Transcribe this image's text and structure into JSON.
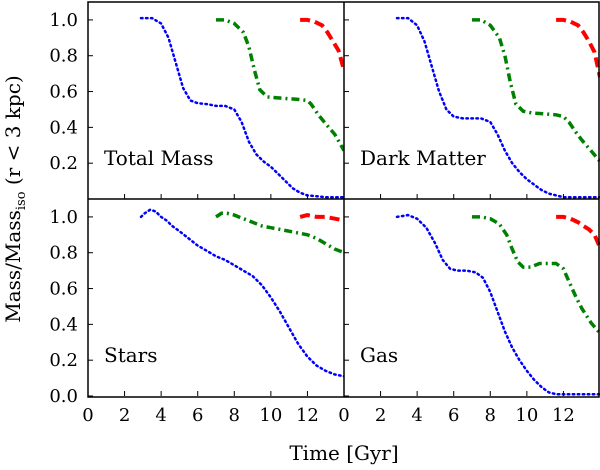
{
  "chart_data": {
    "type": "line",
    "layout": "2x2 panels, shared axes",
    "xlabel": "Time [Gyr]",
    "ylabel": {
      "base": "Mass/Mass",
      "subscript": "iso",
      "suffix": " (r < 3 kpc)"
    },
    "xlim": [
      0,
      14
    ],
    "ylim": [
      0,
      1.1
    ],
    "x_ticks": [
      0,
      2,
      4,
      6,
      8,
      10,
      12
    ],
    "y_ticks_top": [
      0.2,
      0.4,
      0.6,
      0.8,
      1.0
    ],
    "y_ticks_bottom": [
      0.0,
      0.2,
      0.4,
      0.6,
      0.8,
      1.0
    ],
    "grid": false,
    "series_styles": [
      {
        "color": "#0000ff",
        "dash": "dotted"
      },
      {
        "color": "#008000",
        "dash": "dashdot"
      },
      {
        "color": "#ff0000",
        "dash": "dashed"
      }
    ],
    "panels": [
      {
        "label": "Total Mass",
        "series": [
          {
            "x": [
              2.9,
              3.5,
              4.0,
              4.4,
              4.8,
              5.2,
              5.6,
              6.0,
              6.5,
              7.0,
              7.5,
              8.0,
              8.4,
              8.8,
              9.2,
              9.6,
              10.0,
              10.4,
              10.8,
              11.2,
              11.6,
              12.0,
              12.5,
              13.0,
              14.0
            ],
            "y": [
              1.01,
              1.01,
              0.98,
              0.9,
              0.76,
              0.62,
              0.55,
              0.535,
              0.53,
              0.52,
              0.52,
              0.5,
              0.43,
              0.32,
              0.25,
              0.21,
              0.18,
              0.14,
              0.1,
              0.06,
              0.035,
              0.02,
              0.015,
              0.01,
              0.01
            ]
          },
          {
            "x": [
              7.0,
              7.5,
              8.0,
              8.5,
              8.8,
              9.1,
              9.4,
              9.8,
              10.3,
              11.0,
              11.6,
              12.0,
              12.2,
              12.6,
              13.0,
              13.5,
              14.0
            ],
            "y": [
              1.0,
              1.0,
              0.98,
              0.93,
              0.85,
              0.72,
              0.61,
              0.57,
              0.565,
              0.56,
              0.555,
              0.55,
              0.53,
              0.47,
              0.42,
              0.36,
              0.27
            ]
          },
          {
            "x": [
              11.6,
              12.0,
              12.4,
              12.8,
              13.1,
              13.4,
              13.7,
              14.0
            ],
            "y": [
              1.0,
              1.0,
              0.99,
              0.97,
              0.93,
              0.88,
              0.83,
              0.72
            ]
          }
        ]
      },
      {
        "label": "Dark Matter",
        "series": [
          {
            "x": [
              2.9,
              3.5,
              4.0,
              4.4,
              4.8,
              5.2,
              5.6,
              6.0,
              6.5,
              7.0,
              7.5,
              8.0,
              8.4,
              8.8,
              9.2,
              9.6,
              10.0,
              10.4,
              10.8,
              11.2,
              11.6,
              12.0,
              12.5,
              13.0,
              14.0
            ],
            "y": [
              1.01,
              1.01,
              0.97,
              0.88,
              0.74,
              0.6,
              0.5,
              0.46,
              0.45,
              0.45,
              0.45,
              0.43,
              0.36,
              0.27,
              0.2,
              0.15,
              0.11,
              0.08,
              0.05,
              0.03,
              0.02,
              0.01,
              0.01,
              0.01,
              0.01
            ]
          },
          {
            "x": [
              7.0,
              7.5,
              8.0,
              8.5,
              8.8,
              9.1,
              9.4,
              9.8,
              10.3,
              11.0,
              11.6,
              12.0,
              12.3,
              12.7,
              13.0,
              13.5,
              14.0
            ],
            "y": [
              1.0,
              1.0,
              0.97,
              0.9,
              0.8,
              0.65,
              0.53,
              0.49,
              0.48,
              0.475,
              0.47,
              0.46,
              0.43,
              0.37,
              0.33,
              0.27,
              0.21
            ]
          },
          {
            "x": [
              11.6,
              12.0,
              12.4,
              12.8,
              13.1,
              13.4,
              13.7,
              14.0
            ],
            "y": [
              1.0,
              1.0,
              0.99,
              0.97,
              0.93,
              0.88,
              0.82,
              0.68
            ]
          }
        ]
      },
      {
        "label": "Stars",
        "series": [
          {
            "x": [
              2.9,
              3.1,
              3.4,
              3.7,
              4.0,
              4.3,
              4.6,
              5.0,
              5.5,
              6.0,
              6.5,
              7.0,
              7.5,
              8.0,
              8.5,
              9.0,
              9.5,
              10.0,
              10.5,
              11.0,
              11.5,
              12.0,
              12.5,
              13.0,
              13.5,
              14.0
            ],
            "y": [
              1.0,
              1.02,
              1.04,
              1.03,
              1.0,
              0.98,
              0.95,
              0.92,
              0.88,
              0.84,
              0.81,
              0.78,
              0.76,
              0.73,
              0.7,
              0.67,
              0.62,
              0.55,
              0.47,
              0.38,
              0.29,
              0.22,
              0.17,
              0.14,
              0.12,
              0.11
            ]
          },
          {
            "x": [
              7.0,
              7.3,
              7.6,
              8.0,
              8.5,
              9.0,
              9.5,
              10.0,
              10.5,
              11.0,
              11.5,
              12.0,
              12.5,
              13.0,
              13.5,
              14.0
            ],
            "y": [
              1.0,
              1.02,
              1.02,
              1.01,
              0.99,
              0.97,
              0.95,
              0.94,
              0.93,
              0.92,
              0.91,
              0.9,
              0.88,
              0.85,
              0.82,
              0.8
            ]
          },
          {
            "x": [
              11.6,
              12.0,
              12.5,
              13.0,
              13.5,
              14.0
            ],
            "y": [
              1.0,
              1.01,
              1.0,
              1.0,
              0.99,
              0.98
            ]
          }
        ]
      },
      {
        "label": "Gas",
        "series": [
          {
            "x": [
              2.9,
              3.5,
              4.0,
              4.5,
              5.0,
              5.4,
              5.8,
              6.2,
              6.7,
              7.2,
              7.6,
              8.0,
              8.4,
              8.8,
              9.2,
              9.6,
              10.0,
              10.4,
              10.8,
              11.2,
              11.6,
              12.0,
              12.5,
              13.0,
              14.0
            ],
            "y": [
              1.0,
              1.01,
              0.99,
              0.94,
              0.85,
              0.76,
              0.71,
              0.7,
              0.7,
              0.69,
              0.66,
              0.58,
              0.47,
              0.36,
              0.27,
              0.2,
              0.14,
              0.09,
              0.05,
              0.02,
              0.01,
              0.01,
              0.01,
              0.01,
              0.01
            ]
          },
          {
            "x": [
              7.0,
              7.5,
              8.0,
              8.5,
              8.9,
              9.2,
              9.5,
              9.8,
              10.2,
              10.7,
              11.2,
              11.6,
              12.0,
              12.3,
              12.7,
              13.0,
              13.5,
              14.0
            ],
            "y": [
              1.0,
              1.0,
              0.99,
              0.96,
              0.9,
              0.82,
              0.75,
              0.72,
              0.72,
              0.74,
              0.74,
              0.74,
              0.71,
              0.64,
              0.55,
              0.49,
              0.41,
              0.35
            ]
          },
          {
            "x": [
              11.6,
              12.0,
              12.4,
              12.8,
              13.1,
              13.4,
              13.7,
              14.0
            ],
            "y": [
              1.0,
              1.0,
              0.99,
              0.97,
              0.95,
              0.93,
              0.9,
              0.83
            ]
          }
        ]
      }
    ]
  }
}
